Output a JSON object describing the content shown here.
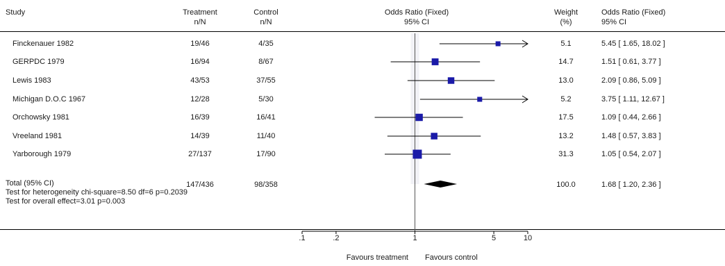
{
  "header": {
    "study": "Study",
    "treatment": [
      "Treatment",
      "n/N"
    ],
    "control": [
      "Control",
      "n/N"
    ],
    "plot_title": [
      "Odds Ratio (Fixed)",
      "95% CI"
    ],
    "weight": [
      "Weight",
      "(%)"
    ],
    "or_col": [
      "Odds Ratio (Fixed)",
      "95% CI"
    ]
  },
  "rows": [
    {
      "study": "Finckenauer 1982",
      "treatment": "19/46",
      "control": "4/35",
      "weight": "5.1",
      "ci_text": "5.45 [ 1.65, 18.02 ]"
    },
    {
      "study": "GERPDC 1979",
      "treatment": "16/94",
      "control": "8/67",
      "weight": "14.7",
      "ci_text": "1.51 [ 0.61, 3.77 ]"
    },
    {
      "study": "Lewis 1983",
      "treatment": "43/53",
      "control": "37/55",
      "weight": "13.0",
      "ci_text": "2.09 [ 0.86, 5.09 ]"
    },
    {
      "study": "Michigan D.O.C 1967",
      "treatment": "12/28",
      "control": "5/30",
      "weight": "5.2",
      "ci_text": "3.75 [ 1.11, 12.67 ]"
    },
    {
      "study": "Orchowsky 1981",
      "treatment": "16/39",
      "control": "16/41",
      "weight": "17.5",
      "ci_text": "1.09 [ 0.44, 2.66 ]"
    },
    {
      "study": "Vreeland 1981",
      "treatment": "14/39",
      "control": "11/40",
      "weight": "13.2",
      "ci_text": "1.48 [ 0.57, 3.83 ]"
    },
    {
      "study": "Yarborough 1979",
      "treatment": "27/137",
      "control": "17/90",
      "weight": "31.3",
      "ci_text": "1.05 [ 0.54, 2.07 ]"
    }
  ],
  "total": {
    "label": "Total (95% CI)",
    "treatment": "147/436",
    "control": "98/358",
    "weight": "100.0",
    "ci_text": "1.68 [ 1.20, 2.36 ]"
  },
  "heterogeneity": "Test for heterogeneity chi-square=8.50 df=6 p=0.2039",
  "overall_effect": "Test for overall effect=3.01 p=0.003",
  "axis": {
    "left_label": "Favours treatment",
    "right_label": "Favours control"
  },
  "colors": {
    "marker": "#1a1aa8",
    "line": "#000000"
  },
  "chart_data": {
    "type": "forest",
    "scale": "log",
    "xlim": [
      0.1,
      10
    ],
    "xticks": [
      0.1,
      0.2,
      1,
      5,
      10
    ],
    "xtick_labels": [
      ".1",
      ".2",
      "1",
      "5",
      "10"
    ],
    "studies": [
      {
        "or": 5.45,
        "lo": 1.65,
        "hi": 18.02,
        "weight": 5.1,
        "clipped": true
      },
      {
        "or": 1.51,
        "lo": 0.61,
        "hi": 3.77,
        "weight": 14.7,
        "clipped": false
      },
      {
        "or": 2.09,
        "lo": 0.86,
        "hi": 5.09,
        "weight": 13.0,
        "clipped": false
      },
      {
        "or": 3.75,
        "lo": 1.11,
        "hi": 12.67,
        "weight": 5.2,
        "clipped": true
      },
      {
        "or": 1.09,
        "lo": 0.44,
        "hi": 2.66,
        "weight": 17.5,
        "clipped": false
      },
      {
        "or": 1.48,
        "lo": 0.57,
        "hi": 3.83,
        "weight": 13.2,
        "clipped": false
      },
      {
        "or": 1.05,
        "lo": 0.54,
        "hi": 2.07,
        "weight": 31.3,
        "clipped": false
      }
    ],
    "pooled": {
      "or": 1.68,
      "lo": 1.2,
      "hi": 2.36
    }
  }
}
